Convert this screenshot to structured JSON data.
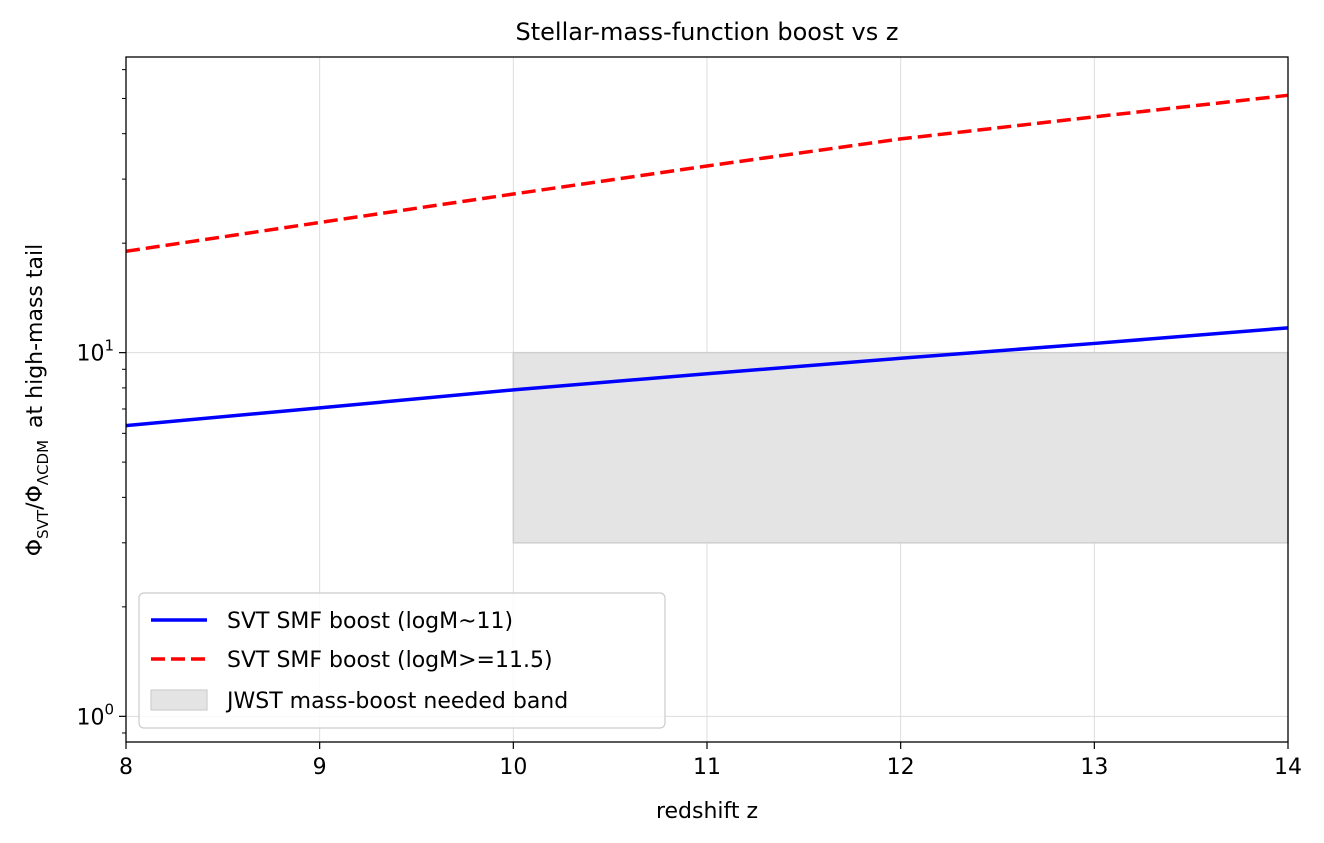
{
  "chart_data": {
    "type": "line",
    "title": "Stellar-mass-function boost vs z",
    "xlabel": "redshift z",
    "ylabel": {
      "phi": "Φ",
      "sub1": "SVT",
      "slash": "/Φ",
      "sub2": "ΛCDM",
      "rest": "at high-mass tail"
    },
    "xlim": [
      8,
      14
    ],
    "ylim": [
      0.85,
      65
    ],
    "yscale": "log",
    "grid": true,
    "legend_position": "lower-left",
    "x_ticks": [
      "8",
      "9",
      "10",
      "11",
      "12",
      "13",
      "14"
    ],
    "y_ticks": [
      {
        "value": 1,
        "base": "10",
        "exp": "0"
      },
      {
        "value": 10,
        "base": "10",
        "exp": "1"
      }
    ],
    "series": [
      {
        "name": "SVT SMF boost (logM~11)",
        "color": "#0000ff",
        "style": "solid",
        "x": [
          8,
          9,
          10,
          11,
          12,
          13,
          14
        ],
        "y": [
          6.3,
          7.05,
          7.9,
          8.75,
          9.65,
          10.6,
          11.7
        ]
      },
      {
        "name": "SVT SMF boost (logM>=11.5)",
        "color": "#ff0000",
        "style": "dashed",
        "x": [
          8,
          9,
          10,
          11,
          12,
          13,
          14
        ],
        "y": [
          19,
          22.8,
          27.3,
          32.6,
          38.7,
          44.5,
          51
        ]
      }
    ],
    "bands": [
      {
        "name": "JWST mass-boost needed band",
        "color": "#e4e4e4",
        "edge_color": "#cfcfcf",
        "x_range": [
          10,
          14
        ],
        "y_range": [
          3,
          10
        ]
      }
    ]
  }
}
